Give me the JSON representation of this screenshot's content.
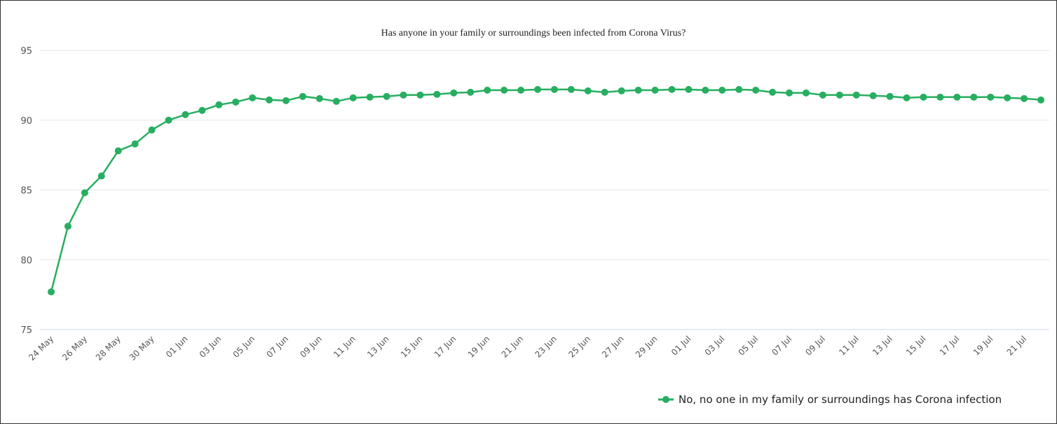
{
  "chart_data": {
    "type": "line",
    "title": "Has anyone in your family or surroundings been infected from Corona Virus?",
    "xlabel": "",
    "ylabel": "",
    "ylim": [
      75,
      95
    ],
    "yticks": [
      95,
      90,
      85,
      80,
      75
    ],
    "grid": true,
    "legend_position": "bottom-right",
    "colors": {
      "series": "#27ae60",
      "grid": "#e6e6e6",
      "axis": "#ccd6eb"
    },
    "x": [
      "24 May",
      "25 May",
      "26 May",
      "27 May",
      "28 May",
      "29 May",
      "30 May",
      "31 May",
      "01 Jun",
      "02 Jun",
      "03 Jun",
      "04 Jun",
      "05 Jun",
      "06 Jun",
      "07 Jun",
      "08 Jun",
      "09 Jun",
      "10 Jun",
      "11 Jun",
      "12 Jun",
      "13 Jun",
      "14 Jun",
      "15 Jun",
      "16 Jun",
      "17 Jun",
      "18 Jun",
      "19 Jun",
      "20 Jun",
      "21 Jun",
      "22 Jun",
      "23 Jun",
      "24 Jun",
      "25 Jun",
      "26 Jun",
      "27 Jun",
      "28 Jun",
      "29 Jun",
      "30 Jun",
      "01 Jul",
      "02 Jul",
      "03 Jul",
      "04 Jul",
      "05 Jul",
      "06 Jul",
      "07 Jul",
      "08 Jul",
      "09 Jul",
      "10 Jul",
      "11 Jul",
      "12 Jul",
      "13 Jul",
      "14 Jul",
      "15 Jul",
      "16 Jul",
      "17 Jul",
      "18 Jul",
      "19 Jul",
      "20 Jul",
      "21 Jul",
      "22 Jul"
    ],
    "xtick_labels": [
      "24 May",
      "26 May",
      "28 May",
      "30 May",
      "01 Jun",
      "03 Jun",
      "05 Jun",
      "07 Jun",
      "09 Jun",
      "11 Jun",
      "13 Jun",
      "15 Jun",
      "17 Jun",
      "19 Jun",
      "21 Jun",
      "23 Jun",
      "25 Jun",
      "27 Jun",
      "29 Jun",
      "01 Jul",
      "03 Jul",
      "05 Jul",
      "07 Jul",
      "09 Jul",
      "11 Jul",
      "13 Jul",
      "15 Jul",
      "17 Jul",
      "19 Jul",
      "21 Jul"
    ],
    "series": [
      {
        "name": "No, no one in my family or surroundings has Corona infection",
        "values": [
          77.7,
          82.4,
          84.8,
          86.0,
          87.8,
          88.3,
          89.3,
          90.0,
          90.4,
          90.7,
          91.1,
          91.3,
          91.6,
          91.45,
          91.4,
          91.7,
          91.55,
          91.35,
          91.6,
          91.65,
          91.7,
          91.8,
          91.8,
          91.85,
          91.95,
          92.0,
          92.15,
          92.15,
          92.15,
          92.2,
          92.2,
          92.2,
          92.1,
          92.0,
          92.1,
          92.15,
          92.15,
          92.2,
          92.2,
          92.15,
          92.15,
          92.2,
          92.15,
          92.0,
          91.95,
          91.95,
          91.8,
          91.8,
          91.8,
          91.75,
          91.7,
          91.6,
          91.65,
          91.65,
          91.65,
          91.65,
          91.65,
          91.6,
          91.55,
          91.45
        ]
      }
    ]
  }
}
